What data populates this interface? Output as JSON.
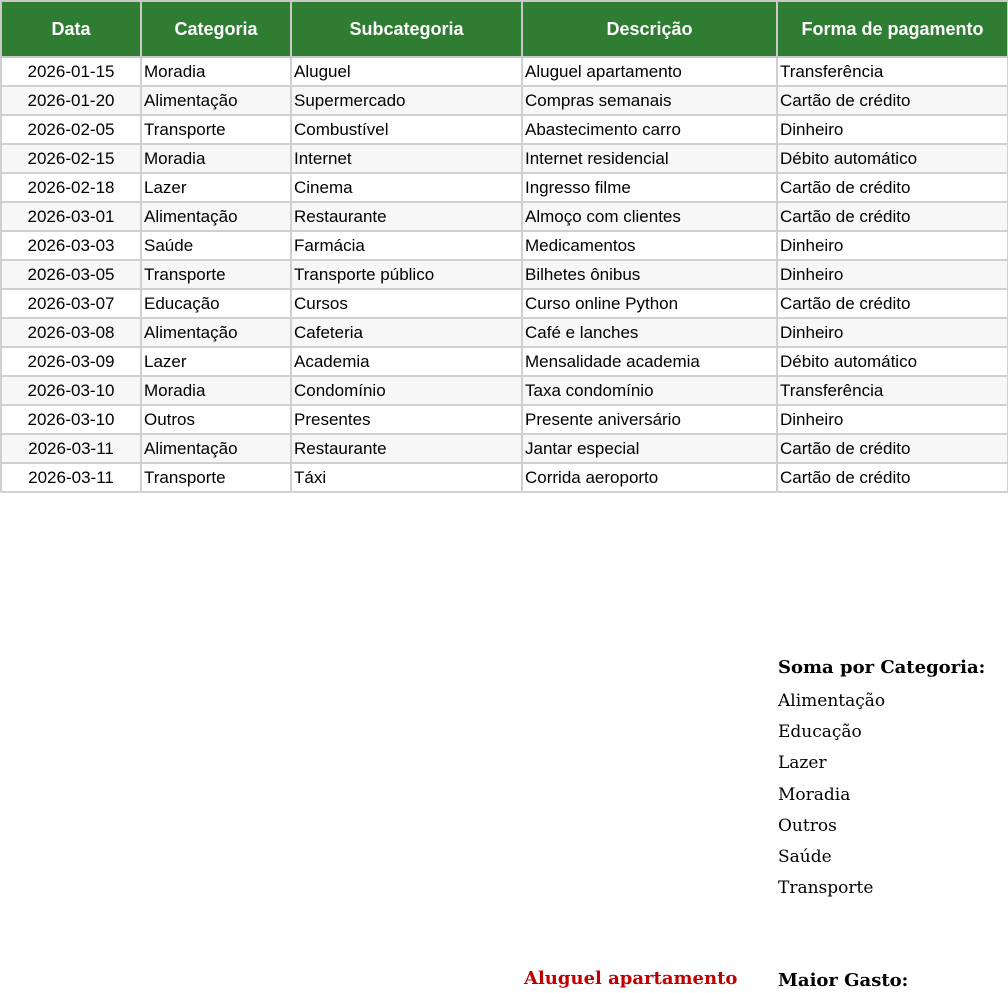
{
  "table": {
    "headers": [
      "Data",
      "Categoria",
      "Subcategoria",
      "Descrição",
      "Forma de pagamento"
    ],
    "rows": [
      [
        "2026-01-15",
        "Moradia",
        "Aluguel",
        "Aluguel apartamento",
        "Transferência"
      ],
      [
        "2026-01-20",
        "Alimentação",
        "Supermercado",
        "Compras semanais",
        "Cartão de crédito"
      ],
      [
        "2026-02-05",
        "Transporte",
        "Combustível",
        "Abastecimento carro",
        "Dinheiro"
      ],
      [
        "2026-02-15",
        "Moradia",
        "Internet",
        "Internet residencial",
        "Débito automático"
      ],
      [
        "2026-02-18",
        "Lazer",
        "Cinema",
        "Ingresso filme",
        "Cartão de crédito"
      ],
      [
        "2026-03-01",
        "Alimentação",
        "Restaurante",
        "Almoço com clientes",
        "Cartão de crédito"
      ],
      [
        "2026-03-03",
        "Saúde",
        "Farmácia",
        "Medicamentos",
        "Dinheiro"
      ],
      [
        "2026-03-05",
        "Transporte",
        "Transporte público",
        "Bilhetes ônibus",
        "Dinheiro"
      ],
      [
        "2026-03-07",
        "Educação",
        "Cursos",
        "Curso online Python",
        "Cartão de crédito"
      ],
      [
        "2026-03-08",
        "Alimentação",
        "Cafeteria",
        "Café e lanches",
        "Dinheiro"
      ],
      [
        "2026-03-09",
        "Lazer",
        "Academia",
        "Mensalidade academia",
        "Débito automático"
      ],
      [
        "2026-03-10",
        "Moradia",
        "Condomínio",
        "Taxa condomínio",
        "Transferência"
      ],
      [
        "2026-03-10",
        "Outros",
        "Presentes",
        "Presente aniversário",
        "Dinheiro"
      ],
      [
        "2026-03-11",
        "Alimentação",
        "Restaurante",
        "Jantar especial",
        "Cartão de crédito"
      ],
      [
        "2026-03-11",
        "Transporte",
        "Táxi",
        "Corrida aeroporto",
        "Cartão de crédito"
      ]
    ]
  },
  "summary": {
    "title": "Soma por Categoria:",
    "categories": [
      "Alimentação",
      "Educação",
      "Lazer",
      "Moradia",
      "Outros",
      "Saúde",
      "Transporte"
    ],
    "max_label": "Maior Gasto:",
    "max_value": "Aluguel apartamento"
  },
  "colors": {
    "header_bg": "#2e7d32",
    "highlight": "#c00000"
  }
}
